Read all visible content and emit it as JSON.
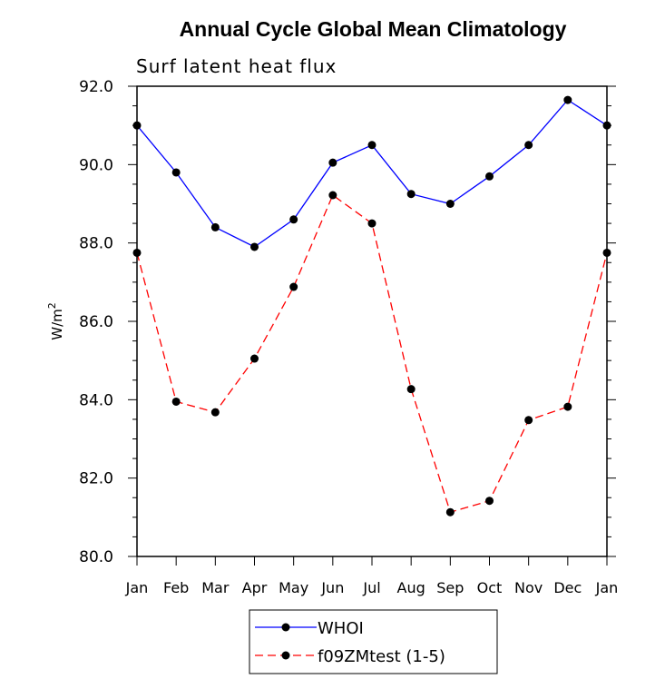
{
  "chart_data": {
    "type": "line",
    "title": "Annual Cycle Global Mean Climatology",
    "subtitle": "Surf latent heat flux",
    "ylabel_base": "W/m",
    "ylabel_sup": "2",
    "xlabel": "",
    "categories": [
      "Jan",
      "Feb",
      "Mar",
      "Apr",
      "May",
      "Jun",
      "Jul",
      "Aug",
      "Sep",
      "Oct",
      "Nov",
      "Dec",
      "Jan"
    ],
    "ylim": [
      80.0,
      92.0
    ],
    "yticks": [
      "80.0",
      "82.0",
      "84.0",
      "86.0",
      "88.0",
      "90.0",
      "92.0"
    ],
    "series": [
      {
        "name": "WHOI",
        "color": "#0000ff",
        "dash": "solid",
        "values": [
          91.0,
          89.8,
          88.4,
          87.9,
          88.6,
          90.05,
          90.5,
          89.25,
          89.0,
          89.7,
          90.5,
          91.65,
          91.0
        ]
      },
      {
        "name": "f09ZMtest (1-5)",
        "color": "#ff0000",
        "dash": "dashed",
        "values": [
          87.75,
          83.95,
          83.68,
          85.05,
          86.88,
          89.22,
          88.5,
          84.27,
          81.13,
          81.42,
          83.48,
          83.82,
          87.75
        ]
      }
    ],
    "legend_position": "bottom-center"
  }
}
